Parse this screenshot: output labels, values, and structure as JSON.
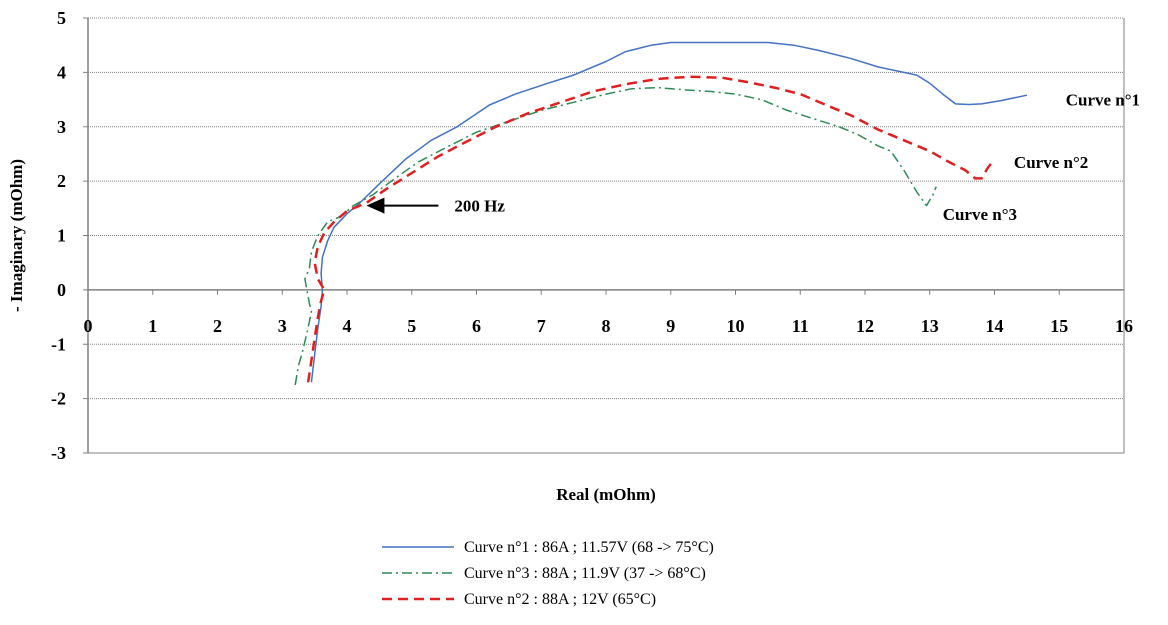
{
  "chart_data": {
    "type": "line",
    "xlabel": "Real (mOhm)",
    "ylabel": "- Imaginary (mOhm)",
    "xlim": [
      0,
      16
    ],
    "ylim": [
      -3,
      5
    ],
    "x_ticks": [
      0,
      1,
      2,
      3,
      4,
      5,
      6,
      7,
      8,
      9,
      10,
      11,
      12,
      13,
      14,
      15,
      16
    ],
    "y_ticks": [
      -3,
      -2,
      -1,
      0,
      1,
      2,
      3,
      4,
      5
    ],
    "grid": "horizontal",
    "legend_position": "bottom",
    "series": [
      {
        "name": "Curve n°1 : 86A ; 11.57V (68 -> 75°C)",
        "color": "#4472C4",
        "style": "solid",
        "points": [
          [
            3.45,
            -1.7
          ],
          [
            3.5,
            -1.2
          ],
          [
            3.55,
            -0.7
          ],
          [
            3.6,
            -0.3
          ],
          [
            3.62,
            0.0
          ],
          [
            3.6,
            0.3
          ],
          [
            3.62,
            0.6
          ],
          [
            3.7,
            0.9
          ],
          [
            3.8,
            1.15
          ],
          [
            4.0,
            1.4
          ],
          [
            4.2,
            1.6
          ],
          [
            4.5,
            1.95
          ],
          [
            4.9,
            2.4
          ],
          [
            5.3,
            2.75
          ],
          [
            5.7,
            3.0
          ],
          [
            6.2,
            3.4
          ],
          [
            6.6,
            3.6
          ],
          [
            7.1,
            3.8
          ],
          [
            7.5,
            3.95
          ],
          [
            8.0,
            4.2
          ],
          [
            8.3,
            4.38
          ],
          [
            8.7,
            4.5
          ],
          [
            9.0,
            4.55
          ],
          [
            9.5,
            4.55
          ],
          [
            10.0,
            4.55
          ],
          [
            10.5,
            4.55
          ],
          [
            10.9,
            4.5
          ],
          [
            11.3,
            4.4
          ],
          [
            11.8,
            4.25
          ],
          [
            12.2,
            4.1
          ],
          [
            12.6,
            4.0
          ],
          [
            12.8,
            3.95
          ],
          [
            13.0,
            3.8
          ],
          [
            13.2,
            3.6
          ],
          [
            13.4,
            3.42
          ],
          [
            13.6,
            3.41
          ],
          [
            13.8,
            3.42
          ],
          [
            14.1,
            3.48
          ],
          [
            14.3,
            3.53
          ],
          [
            14.5,
            3.58
          ]
        ]
      },
      {
        "name": "Curve n°3 : 88A ; 11.9V (37 -> 68°C)",
        "color": "#2E8B57",
        "style": "dashdot",
        "points": [
          [
            3.2,
            -1.75
          ],
          [
            3.25,
            -1.4
          ],
          [
            3.32,
            -1.1
          ],
          [
            3.4,
            -0.7
          ],
          [
            3.45,
            -0.4
          ],
          [
            3.42,
            -0.25
          ],
          [
            3.38,
            0.0
          ],
          [
            3.35,
            0.2
          ],
          [
            3.42,
            0.4
          ],
          [
            3.45,
            0.7
          ],
          [
            3.55,
            1.0
          ],
          [
            3.7,
            1.25
          ],
          [
            3.9,
            1.35
          ],
          [
            4.1,
            1.55
          ],
          [
            4.4,
            1.75
          ],
          [
            4.8,
            2.1
          ],
          [
            5.1,
            2.35
          ],
          [
            5.5,
            2.6
          ],
          [
            6.0,
            2.9
          ],
          [
            6.5,
            3.1
          ],
          [
            7.0,
            3.3
          ],
          [
            7.5,
            3.45
          ],
          [
            8.0,
            3.6
          ],
          [
            8.4,
            3.7
          ],
          [
            8.8,
            3.72
          ],
          [
            9.2,
            3.68
          ],
          [
            9.6,
            3.65
          ],
          [
            10.0,
            3.6
          ],
          [
            10.4,
            3.5
          ],
          [
            10.8,
            3.3
          ],
          [
            11.2,
            3.15
          ],
          [
            11.6,
            3.0
          ],
          [
            11.9,
            2.85
          ],
          [
            12.2,
            2.65
          ],
          [
            12.4,
            2.55
          ],
          [
            12.6,
            2.2
          ],
          [
            12.8,
            1.8
          ],
          [
            12.95,
            1.55
          ],
          [
            13.05,
            1.75
          ],
          [
            13.1,
            1.9
          ]
        ]
      },
      {
        "name": "Curve n°2 : 88A ; 12V (65°C)",
        "color": "#E02020",
        "style": "dashed",
        "points": [
          [
            3.4,
            -1.7
          ],
          [
            3.45,
            -1.3
          ],
          [
            3.5,
            -0.9
          ],
          [
            3.55,
            -0.5
          ],
          [
            3.6,
            -0.2
          ],
          [
            3.65,
            0.0
          ],
          [
            3.55,
            0.2
          ],
          [
            3.5,
            0.5
          ],
          [
            3.55,
            0.8
          ],
          [
            3.65,
            1.05
          ],
          [
            3.8,
            1.25
          ],
          [
            4.0,
            1.45
          ],
          [
            4.3,
            1.6
          ],
          [
            4.6,
            1.85
          ],
          [
            5.0,
            2.15
          ],
          [
            5.4,
            2.45
          ],
          [
            5.8,
            2.7
          ],
          [
            6.3,
            3.0
          ],
          [
            6.8,
            3.25
          ],
          [
            7.3,
            3.45
          ],
          [
            7.8,
            3.65
          ],
          [
            8.3,
            3.78
          ],
          [
            8.8,
            3.88
          ],
          [
            9.3,
            3.92
          ],
          [
            9.8,
            3.9
          ],
          [
            10.2,
            3.82
          ],
          [
            10.6,
            3.72
          ],
          [
            11.0,
            3.6
          ],
          [
            11.4,
            3.4
          ],
          [
            11.8,
            3.2
          ],
          [
            12.2,
            2.95
          ],
          [
            12.6,
            2.75
          ],
          [
            13.0,
            2.55
          ],
          [
            13.3,
            2.35
          ],
          [
            13.55,
            2.2
          ],
          [
            13.7,
            2.05
          ],
          [
            13.8,
            2.05
          ],
          [
            13.9,
            2.25
          ],
          [
            14.0,
            2.4
          ]
        ]
      }
    ],
    "annotations": [
      {
        "text": "200 Hz",
        "x": 4.3,
        "y": 1.55,
        "arrow": true
      },
      {
        "text": "Curve n°1",
        "x": 15.1,
        "y": 3.5
      },
      {
        "text": "Curve n°2",
        "x": 14.3,
        "y": 2.35
      },
      {
        "text": "Curve n°3",
        "x": 13.2,
        "y": 1.4
      }
    ]
  }
}
